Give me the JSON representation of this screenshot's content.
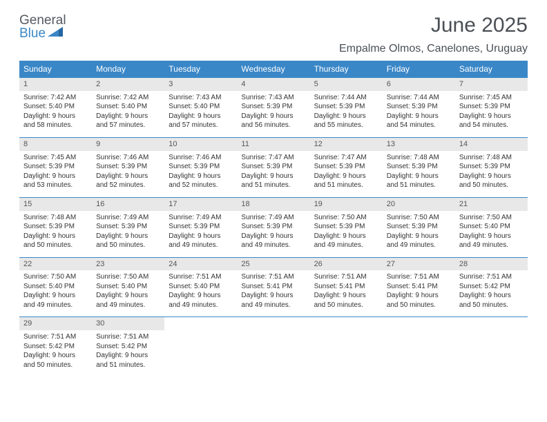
{
  "logo": {
    "line1": "General",
    "line2": "Blue"
  },
  "title": "June 2025",
  "location": "Empalme Olmos, Canelones, Uruguay",
  "colors": {
    "header_bg": "#3a87c7",
    "header_text": "#ffffff",
    "daynum_bg": "#e8e8e8",
    "row_border": "#3a87c7",
    "text": "#333333",
    "title_text": "#4a4f55",
    "logo_gray": "#555a60",
    "logo_blue": "#3a87c7"
  },
  "typography": {
    "title_fontsize": 30,
    "location_fontsize": 16,
    "header_fontsize": 12,
    "daynum_fontsize": 11,
    "body_fontsize": 10
  },
  "headers": [
    "Sunday",
    "Monday",
    "Tuesday",
    "Wednesday",
    "Thursday",
    "Friday",
    "Saturday"
  ],
  "weeks": [
    [
      {
        "n": "1",
        "sr": "7:42 AM",
        "ss": "5:40 PM",
        "dl": "9 hours and 58 minutes."
      },
      {
        "n": "2",
        "sr": "7:42 AM",
        "ss": "5:40 PM",
        "dl": "9 hours and 57 minutes."
      },
      {
        "n": "3",
        "sr": "7:43 AM",
        "ss": "5:40 PM",
        "dl": "9 hours and 57 minutes."
      },
      {
        "n": "4",
        "sr": "7:43 AM",
        "ss": "5:39 PM",
        "dl": "9 hours and 56 minutes."
      },
      {
        "n": "5",
        "sr": "7:44 AM",
        "ss": "5:39 PM",
        "dl": "9 hours and 55 minutes."
      },
      {
        "n": "6",
        "sr": "7:44 AM",
        "ss": "5:39 PM",
        "dl": "9 hours and 54 minutes."
      },
      {
        "n": "7",
        "sr": "7:45 AM",
        "ss": "5:39 PM",
        "dl": "9 hours and 54 minutes."
      }
    ],
    [
      {
        "n": "8",
        "sr": "7:45 AM",
        "ss": "5:39 PM",
        "dl": "9 hours and 53 minutes."
      },
      {
        "n": "9",
        "sr": "7:46 AM",
        "ss": "5:39 PM",
        "dl": "9 hours and 52 minutes."
      },
      {
        "n": "10",
        "sr": "7:46 AM",
        "ss": "5:39 PM",
        "dl": "9 hours and 52 minutes."
      },
      {
        "n": "11",
        "sr": "7:47 AM",
        "ss": "5:39 PM",
        "dl": "9 hours and 51 minutes."
      },
      {
        "n": "12",
        "sr": "7:47 AM",
        "ss": "5:39 PM",
        "dl": "9 hours and 51 minutes."
      },
      {
        "n": "13",
        "sr": "7:48 AM",
        "ss": "5:39 PM",
        "dl": "9 hours and 51 minutes."
      },
      {
        "n": "14",
        "sr": "7:48 AM",
        "ss": "5:39 PM",
        "dl": "9 hours and 50 minutes."
      }
    ],
    [
      {
        "n": "15",
        "sr": "7:48 AM",
        "ss": "5:39 PM",
        "dl": "9 hours and 50 minutes."
      },
      {
        "n": "16",
        "sr": "7:49 AM",
        "ss": "5:39 PM",
        "dl": "9 hours and 50 minutes."
      },
      {
        "n": "17",
        "sr": "7:49 AM",
        "ss": "5:39 PM",
        "dl": "9 hours and 49 minutes."
      },
      {
        "n": "18",
        "sr": "7:49 AM",
        "ss": "5:39 PM",
        "dl": "9 hours and 49 minutes."
      },
      {
        "n": "19",
        "sr": "7:50 AM",
        "ss": "5:39 PM",
        "dl": "9 hours and 49 minutes."
      },
      {
        "n": "20",
        "sr": "7:50 AM",
        "ss": "5:39 PM",
        "dl": "9 hours and 49 minutes."
      },
      {
        "n": "21",
        "sr": "7:50 AM",
        "ss": "5:40 PM",
        "dl": "9 hours and 49 minutes."
      }
    ],
    [
      {
        "n": "22",
        "sr": "7:50 AM",
        "ss": "5:40 PM",
        "dl": "9 hours and 49 minutes."
      },
      {
        "n": "23",
        "sr": "7:50 AM",
        "ss": "5:40 PM",
        "dl": "9 hours and 49 minutes."
      },
      {
        "n": "24",
        "sr": "7:51 AM",
        "ss": "5:40 PM",
        "dl": "9 hours and 49 minutes."
      },
      {
        "n": "25",
        "sr": "7:51 AM",
        "ss": "5:41 PM",
        "dl": "9 hours and 49 minutes."
      },
      {
        "n": "26",
        "sr": "7:51 AM",
        "ss": "5:41 PM",
        "dl": "9 hours and 50 minutes."
      },
      {
        "n": "27",
        "sr": "7:51 AM",
        "ss": "5:41 PM",
        "dl": "9 hours and 50 minutes."
      },
      {
        "n": "28",
        "sr": "7:51 AM",
        "ss": "5:42 PM",
        "dl": "9 hours and 50 minutes."
      }
    ],
    [
      {
        "n": "29",
        "sr": "7:51 AM",
        "ss": "5:42 PM",
        "dl": "9 hours and 50 minutes."
      },
      {
        "n": "30",
        "sr": "7:51 AM",
        "ss": "5:42 PM",
        "dl": "9 hours and 51 minutes."
      },
      null,
      null,
      null,
      null,
      null
    ]
  ],
  "labels": {
    "sunrise_prefix": "Sunrise: ",
    "sunset_prefix": "Sunset: ",
    "daylight_prefix": "Daylight: "
  }
}
